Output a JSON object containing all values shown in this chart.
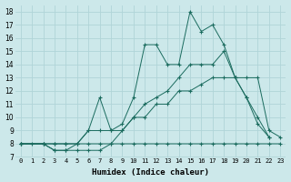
{
  "xlabel": "Humidex (Indice chaleur)",
  "background_color": "#cce8ea",
  "grid_color": "#b0d4d8",
  "line_color": "#1a6b5e",
  "xlim": [
    -0.5,
    23.5
  ],
  "ylim": [
    7,
    18.5
  ],
  "xticks": [
    0,
    1,
    2,
    3,
    4,
    5,
    6,
    7,
    8,
    9,
    10,
    11,
    12,
    13,
    14,
    15,
    16,
    17,
    18,
    19,
    20,
    21,
    22,
    23
  ],
  "yticks": [
    7,
    8,
    9,
    10,
    11,
    12,
    13,
    14,
    15,
    16,
    17,
    18
  ],
  "series": [
    {
      "x": [
        0,
        1,
        2,
        3,
        4,
        5,
        6,
        7,
        8,
        9,
        10,
        11,
        12,
        13,
        14,
        15,
        16,
        17,
        18,
        19,
        20,
        21,
        22,
        23
      ],
      "y": [
        8,
        8,
        8,
        7.5,
        7.5,
        7.5,
        7.5,
        7.5,
        8,
        8,
        8,
        8,
        8,
        8,
        8,
        8,
        8,
        8,
        8,
        8,
        8,
        8,
        8,
        8
      ]
    },
    {
      "x": [
        0,
        2,
        3,
        4,
        5,
        6,
        7,
        8,
        9,
        10,
        11,
        12,
        13,
        14,
        15,
        16,
        17,
        18,
        19,
        20,
        21,
        22,
        23
      ],
      "y": [
        8,
        8,
        8,
        8,
        8,
        8,
        8,
        8,
        9,
        10,
        10,
        11,
        11,
        12,
        12,
        12.5,
        13,
        13,
        13,
        13,
        13,
        9,
        8.5
      ]
    },
    {
      "x": [
        0,
        2,
        3,
        4,
        5,
        6,
        7,
        8,
        9,
        10,
        11,
        12,
        13,
        14,
        15,
        16,
        17,
        18,
        19,
        20,
        21,
        22
      ],
      "y": [
        8,
        8,
        8,
        8,
        8,
        9,
        9,
        9,
        9,
        10,
        11,
        11.5,
        12,
        13,
        14,
        14,
        14,
        15,
        13,
        11.5,
        10,
        8.5
      ]
    },
    {
      "x": [
        0,
        2,
        3,
        4,
        5,
        6,
        7,
        8,
        9,
        10,
        11,
        12,
        13,
        14,
        15,
        16,
        17,
        18,
        19,
        20,
        21,
        22
      ],
      "y": [
        8,
        8,
        7.5,
        7.5,
        8,
        9,
        11.5,
        9,
        9.5,
        11.5,
        15.5,
        15.5,
        14,
        14,
        18,
        16.5,
        17,
        15.5,
        13,
        11.5,
        9.5,
        8.5
      ]
    }
  ]
}
